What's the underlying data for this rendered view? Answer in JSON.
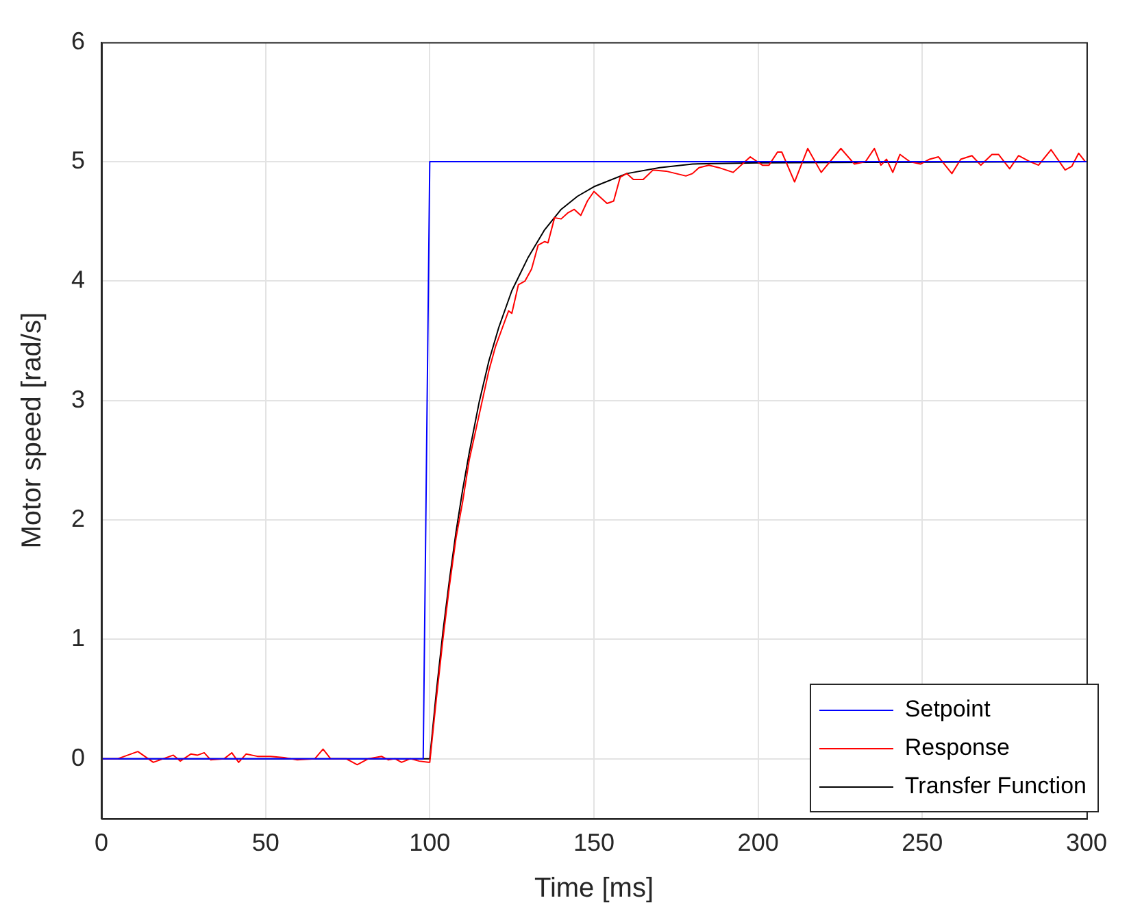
{
  "chart_data": {
    "type": "line",
    "xlabel": "Time [ms]",
    "ylabel": "Motor speed [rad/s]",
    "xlim": [
      0,
      300
    ],
    "ylim": [
      -0.5,
      6
    ],
    "xticks": [
      0,
      50,
      100,
      150,
      200,
      250,
      300
    ],
    "yticks": [
      0,
      1,
      2,
      3,
      4,
      5,
      6
    ],
    "grid": true,
    "legend": "bottom right",
    "marker": "none",
    "line_style": "solid",
    "series": [
      {
        "name": "Setpoint",
        "color": "#0000ff",
        "x": [
          0,
          98,
          100,
          300
        ],
        "values": [
          0,
          0,
          5,
          5
        ]
      },
      {
        "name": "Response",
        "color": "#ff0000",
        "x": [
          0,
          5,
          11.1,
          15.8,
          21.9,
          24,
          27.3,
          29.3,
          31.3,
          33.3,
          37.4,
          39.7,
          41.8,
          44.1,
          47.5,
          51.5,
          55.6,
          59.6,
          65,
          67.5,
          69.8,
          74.5,
          77.9,
          81.3,
          85.3,
          87.4,
          89.4,
          91.4,
          94.1,
          96.8,
          99.5,
          100,
          102,
          104,
          106,
          108,
          110,
          112,
          114,
          116,
          118,
          120,
          122,
          124,
          125,
          127,
          129,
          131,
          133,
          135,
          136,
          138,
          140,
          142,
          144,
          146,
          148,
          150,
          152,
          154,
          156,
          158,
          160,
          162,
          165,
          168,
          172,
          175,
          178,
          180,
          182,
          185,
          188,
          192.4,
          197.6,
          201.3,
          203.3,
          205.9,
          207.2,
          211.1,
          215.1,
          219.2,
          225.2,
          229.3,
          232.7,
          235.4,
          237.4,
          239.1,
          241,
          243.2,
          246.2,
          249.5,
          252.2,
          254.9,
          259,
          261.7,
          265.1,
          267.8,
          271.2,
          273.2,
          276.6,
          279.3,
          282.7,
          285.4,
          289.2,
          293.5,
          295.5,
          297.6,
          299.6
        ],
        "values": [
          0,
          0,
          0.06,
          -0.03,
          0.03,
          -0.02,
          0.04,
          0.03,
          0.05,
          -0.01,
          0,
          0.05,
          -0.03,
          0.04,
          0.02,
          0.02,
          0.01,
          -0.01,
          0,
          0.08,
          0,
          0,
          -0.05,
          0,
          0.02,
          -0.01,
          0,
          -0.03,
          0,
          -0.02,
          -0.03,
          -0.03,
          0.5,
          1.0,
          1.45,
          1.85,
          2.15,
          2.5,
          2.75,
          3.0,
          3.25,
          3.45,
          3.6,
          3.75,
          3.73,
          3.97,
          4.0,
          4.1,
          4.3,
          4.33,
          4.32,
          4.53,
          4.52,
          4.57,
          4.6,
          4.55,
          4.67,
          4.75,
          4.7,
          4.65,
          4.67,
          4.87,
          4.9,
          4.85,
          4.85,
          4.93,
          4.92,
          4.9,
          4.88,
          4.9,
          4.95,
          4.97,
          4.95,
          4.91,
          5.04,
          4.97,
          4.97,
          5.08,
          5.08,
          4.83,
          5.11,
          4.91,
          5.11,
          4.98,
          5.0,
          5.11,
          4.97,
          5.02,
          4.91,
          5.06,
          5.0,
          4.98,
          5.02,
          5.04,
          4.9,
          5.02,
          5.05,
          4.97,
          5.06,
          5.06,
          4.94,
          5.05,
          5.0,
          4.97,
          5.1,
          4.93,
          4.96,
          5.07,
          5.0
        ]
      },
      {
        "name": "Transfer Function",
        "color": "#000000",
        "x": [
          0,
          100,
          102,
          104,
          106,
          108,
          110,
          112,
          115,
          118,
          121,
          125,
          130,
          135,
          140,
          145,
          150,
          160,
          170,
          180,
          200,
          300
        ],
        "values": [
          0,
          0,
          0.56,
          1.06,
          1.5,
          1.9,
          2.25,
          2.56,
          2.98,
          3.33,
          3.61,
          3.92,
          4.2,
          4.43,
          4.6,
          4.71,
          4.79,
          4.9,
          4.95,
          4.98,
          4.99,
          5.0
        ]
      }
    ]
  }
}
